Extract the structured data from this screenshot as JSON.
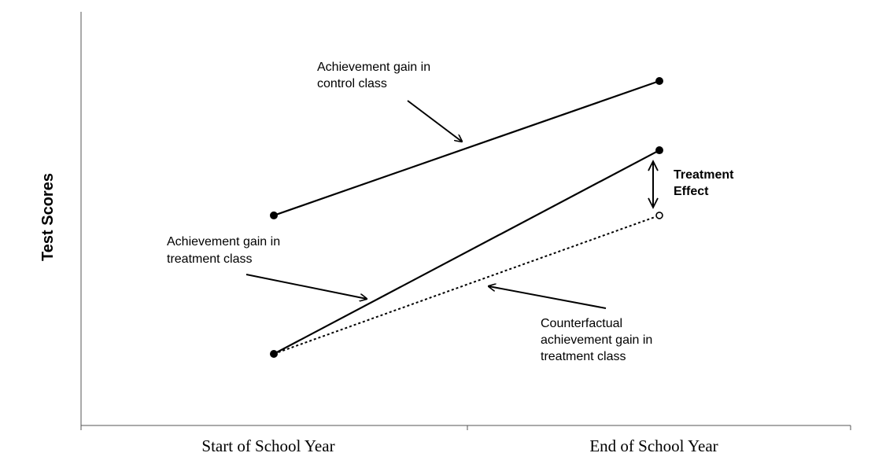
{
  "chart_data": {
    "type": "line",
    "title": "",
    "xlabel": "",
    "ylabel": "Test Scores",
    "categories": [
      "Start of School Year",
      "End of School Year"
    ],
    "ylim": [
      0,
      100
    ],
    "grid": false,
    "legend": "none",
    "series": [
      {
        "name": "control",
        "values": [
          51,
          84
        ],
        "style": "solid",
        "marker": "filled-circle",
        "color": "#000000"
      },
      {
        "name": "treatment",
        "values": [
          17,
          67
        ],
        "style": "solid",
        "marker": "filled-circle",
        "color": "#000000"
      },
      {
        "name": "counterfactual",
        "values": [
          17,
          51
        ],
        "style": "dotted",
        "marker": "open-circle-end",
        "color": "#000000"
      }
    ],
    "annotations": [
      {
        "lines": [
          "Achievement gain in",
          "control class"
        ],
        "points_to": "control",
        "bold": false
      },
      {
        "lines": [
          "Achievement gain in",
          "treatment class"
        ],
        "points_to": "treatment",
        "bold": false
      },
      {
        "lines": [
          "Counterfactual",
          "achievement gain in",
          "treatment class"
        ],
        "points_to": "counterfactual",
        "bold": false
      },
      {
        "lines": [
          "Treatment",
          "Effect"
        ],
        "points_to": "treatment-effect",
        "bold": true
      }
    ]
  }
}
